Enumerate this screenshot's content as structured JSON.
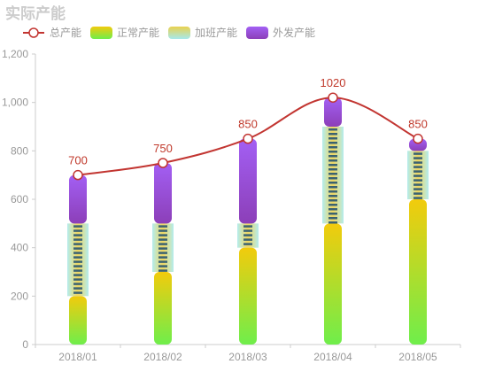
{
  "chart_data": {
    "type": "bar",
    "title": "实际产能",
    "categories": [
      "2018/01",
      "2018/02",
      "2018/03",
      "2018/04",
      "2018/05"
    ],
    "series": [
      {
        "name": "总产能",
        "type": "line",
        "values": [
          700,
          750,
          850,
          1020,
          850
        ]
      },
      {
        "name": "正常产能",
        "type": "bar",
        "stack": true,
        "values": [
          200,
          300,
          400,
          500,
          600
        ]
      },
      {
        "name": "加班产能",
        "type": "bar",
        "stack": true,
        "values": [
          300,
          200,
          100,
          400,
          200
        ]
      },
      {
        "name": "外发产能",
        "type": "bar",
        "stack": true,
        "values": [
          200,
          250,
          350,
          120,
          50
        ]
      }
    ],
    "xlabel": "",
    "ylabel": "",
    "ylim": [
      0,
      1200
    ],
    "yticks": [
      "0",
      "200",
      "400",
      "600",
      "800",
      "1,000",
      "1,200"
    ],
    "legend_position": "top-left",
    "grid": false,
    "colors": {
      "line": "#c23531",
      "normal_top": "#f0c80e",
      "normal_bottom": "#7bec45",
      "overtime_light": "#a8e6e6",
      "overtime_mid": "#e2d35a",
      "overtime_stripe": "#1c4d72",
      "outsource_top": "#9b59f6",
      "outsource_bottom": "#8e44ad"
    }
  }
}
